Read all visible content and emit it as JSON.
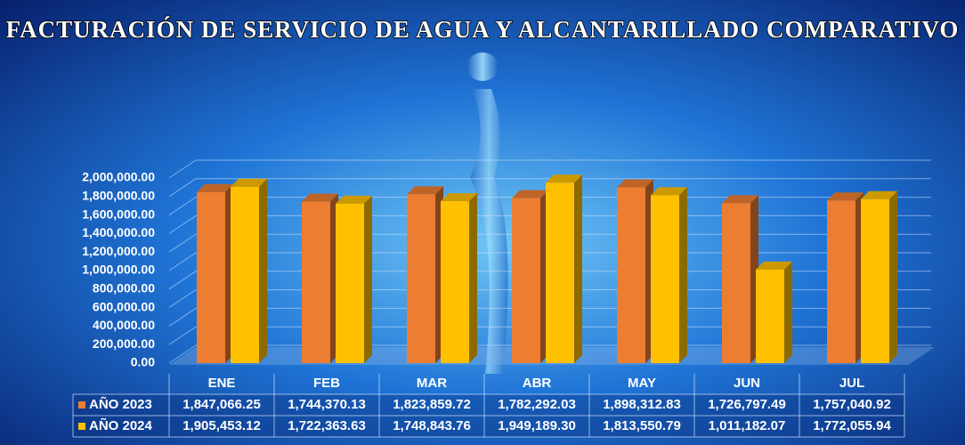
{
  "chart_data": {
    "type": "bar3d",
    "title": "FACTURACIÓN DE SERVICIO DE AGUA Y ALCANTARILLADO COMPARATIVO",
    "categories": [
      "ENE",
      "FEB",
      "MAR",
      "ABR",
      "MAY",
      "JUN",
      "JUL"
    ],
    "series": [
      {
        "name": "AÑO 2023",
        "color": "#ed7d31",
        "values": [
          1847066.25,
          1744370.13,
          1823859.72,
          1782292.03,
          1898312.83,
          1726797.49,
          1757040.92
        ],
        "value_labels": [
          "1,847,066.25",
          "1,744,370.13",
          "1,823,859.72",
          "1,782,292.03",
          "1,898,312.83",
          "1,726,797.49",
          "1,757,040.92"
        ]
      },
      {
        "name": "AÑO 2024",
        "color": "#ffc000",
        "values": [
          1905453.12,
          1722363.63,
          1748843.76,
          1949189.3,
          1813550.79,
          1011182.07,
          1772055.94
        ],
        "value_labels": [
          "1,905,453.12",
          "1,722,363.63",
          "1,748,843.76",
          "1,949,189.30",
          "1,813,550.79",
          "1,011,182.07",
          "1,772,055.94"
        ]
      }
    ],
    "ylim": [
      0,
      2000000
    ],
    "yticks": [
      {
        "value": 0,
        "label": "0.00"
      },
      {
        "value": 200000,
        "label": "200,000.00"
      },
      {
        "value": 400000,
        "label": "400,000.00"
      },
      {
        "value": 600000,
        "label": "600,000.00"
      },
      {
        "value": 800000,
        "label": "800,000.00"
      },
      {
        "value": 1000000,
        "label": "1,000,000.00"
      },
      {
        "value": 1200000,
        "label": "1,200,000.00"
      },
      {
        "value": 1400000,
        "label": "1,400,000.00"
      },
      {
        "value": 1600000,
        "label": "1,600,000.00"
      },
      {
        "value": 1800000,
        "label": "1,800,000.00"
      },
      {
        "value": 2000000,
        "label": "2,000,000.00"
      }
    ],
    "grid": true
  }
}
